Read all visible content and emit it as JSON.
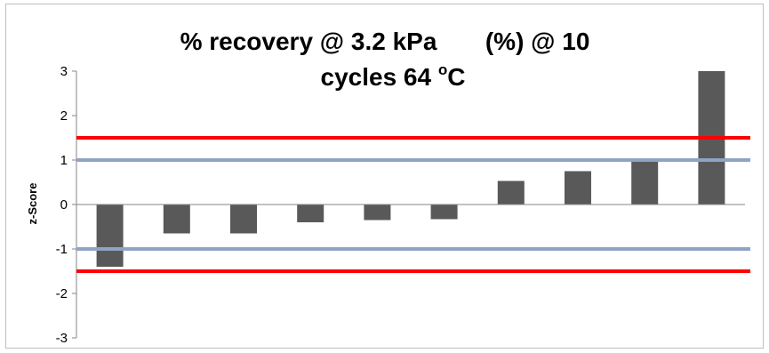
{
  "chart_data": {
    "type": "bar",
    "title_line1": "% recovery @ 3.2 kPa       (%) @ 10",
    "title_line2_main": "cycles 64 ",
    "title_line2_super": "o",
    "title_line2_end": "C",
    "xlabel": "",
    "ylabel": "z-Score",
    "ylim": [
      -3,
      3
    ],
    "yticks": [
      3,
      2,
      1,
      0,
      -1,
      -2,
      -3
    ],
    "grid": false,
    "legend": "none",
    "values": [
      -1.4,
      -0.65,
      -0.65,
      -0.4,
      -0.35,
      -0.33,
      0.53,
      0.75,
      0.97,
      3.0
    ],
    "bar_color": "#595959",
    "reference_lines": [
      {
        "value": 1.5,
        "color": "#ff0000"
      },
      {
        "value": -1.5,
        "color": "#ff0000"
      },
      {
        "value": 1,
        "color": "#8fa4c4"
      },
      {
        "value": -1,
        "color": "#8fa4c4"
      }
    ]
  }
}
